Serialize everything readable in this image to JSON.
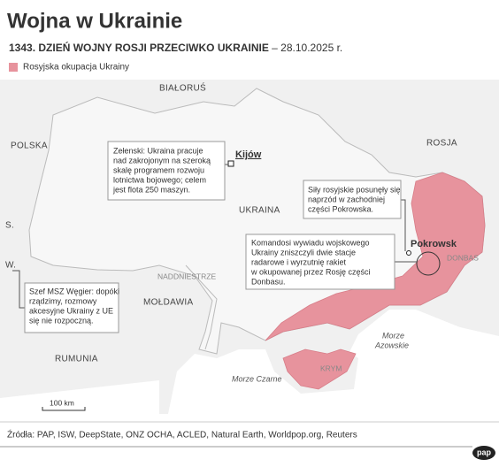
{
  "header": {
    "title": "Wojna w Ukrainie",
    "subtitle": "1343. DZIEŃ WOJNY ROSJI PRZECIWKO UKRAINIE",
    "date": " – 28.10.2025 r."
  },
  "legend": {
    "label": "Rosyjska okupacja Ukrainy"
  },
  "countries": [
    "BIAŁORUŚ",
    "POLSKA",
    "ROSJA",
    "UKRAINA",
    "MOŁDAWIA",
    "RUMUNIA",
    "S.",
    "W."
  ],
  "regions": [
    "NADDNIESTRZE",
    "DONBAS",
    "KRYM"
  ],
  "seas": {
    "azov": [
      "Morze",
      "Azowskie"
    ],
    "black": "Morze Czarne"
  },
  "cities": [
    "Kijów",
    "Pokrowsk"
  ],
  "notes": [
    [
      "Zełenski: Ukraina pracuje",
      "nad zakrojonym na szeroką",
      "skalę programem rozwoju",
      "lotnictwa bojowego; celem",
      "jest flota 250 maszyn."
    ],
    [
      "Siły rosyjskie posunęły się",
      "naprzód w zachodniej",
      "części Pokrowska."
    ],
    [
      "Komandosi wywiadu wojskowego",
      "Ukrainy zniszczyli dwie stacje",
      "radarowe i wyrzutnię rakiet",
      "w okupowanej przez Rosję części",
      "Donbasu."
    ],
    [
      "Szef MSZ Węgier: dopóki",
      "rządzimy, rozmowy",
      "akcesyjne Ukrainy z UE",
      "się nie rozpoczną."
    ]
  ],
  "scale": "100 km",
  "footer": {
    "source": "Źródła: PAP, ISW, DeepState, ONZ OCHA, ACLED, Natural Earth, Worldpop.org, Reuters",
    "logo": "pap"
  }
}
